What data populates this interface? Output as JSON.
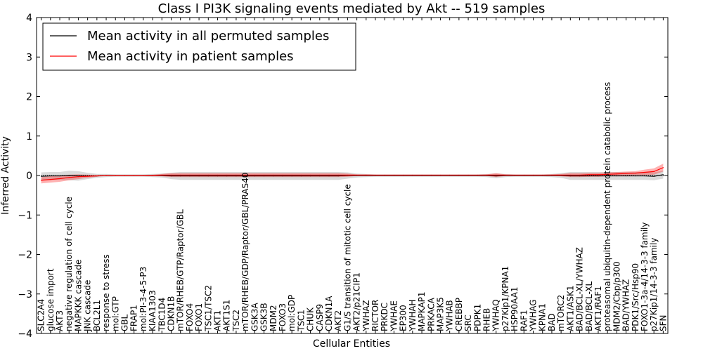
{
  "chart_data": {
    "type": "line",
    "title": "Class I PI3K signaling events mediated by Akt -- 519 samples",
    "xlabel": "Cellular Entities",
    "ylabel": "Inferred Activity",
    "ylim": [
      -4,
      4
    ],
    "yticks": [
      -4,
      -3,
      -2,
      -1,
      0,
      1,
      2,
      3,
      4
    ],
    "legend": {
      "position": "top-left",
      "entries": [
        {
          "label": "Mean activity in all permuted samples",
          "color": "#000000"
        },
        {
          "label": "Mean activity in patient samples",
          "color": "#ff0000"
        }
      ]
    },
    "categories": [
      "SLC2A4",
      "glucose import",
      "AKT3",
      "negative regulation of cell cycle",
      "MAPKKK cascade",
      "JNK cascade",
      "BCL2L1",
      "response to stress",
      "mol:GTP",
      "GBL",
      "FRAP1",
      "mol:PI-3-4-5-P3",
      "KIAA1303",
      "TBC1D4",
      "CDKN1B",
      "mTOR/RHEB/GTP/Raptor/GBL",
      "FOXO4",
      "FOXO1",
      "TSC1/TSC2",
      "AKT1",
      "AKT1S1",
      "TSC2",
      "mTOR/RHEB/GDP/Raptor/GBL/PRAS40",
      "GSK3A",
      "GSK3B",
      "MDM2",
      "FOXO3",
      "mol:GDP",
      "TSC1",
      "CHUK",
      "CASP9",
      "CDKN1A",
      "AKT2",
      "G1/S transition of mitotic cell cycle",
      "AKT2/p21CIP1",
      "YWHAZ",
      "RICTOR",
      "PRKDC",
      "YWHAE",
      "EP300",
      "YWHAH",
      "MAPKAP1",
      "PRKACA",
      "MAP3K5",
      "YWHAB",
      "CREBBP",
      "SRC",
      "PDPK1",
      "RHEB",
      "YWHAQ",
      "p27Kip1/KPNA1",
      "HSP90AA1",
      "RAF1",
      "YWHAG",
      "KPNA1",
      "BAD",
      "mTORC2",
      "AKT1/ASK1",
      "BAD/BCL-XL/YWHAZ",
      "BAD/BCL-XL",
      "AKT1/RAF1",
      "proteasomal ubiquitin-dependent protein catabolic process",
      "MDM2/Cbp/p300",
      "BAD/YWHAZ",
      "PDK1/Src/Hsp90",
      "FOXO1-3a-4/14-3-3 family",
      "p27Kip1/14-3-3 family",
      "SFN"
    ],
    "series": [
      {
        "name": "Mean activity in all permuted samples",
        "color": "#000000",
        "values": [
          -0.02,
          -0.01,
          -0.01,
          0.0,
          -0.01,
          -0.01,
          -0.01,
          0.0,
          0.0,
          0.0,
          0.0,
          0.0,
          0.0,
          0.0,
          -0.01,
          -0.01,
          -0.01,
          -0.01,
          -0.01,
          -0.01,
          -0.01,
          -0.01,
          -0.01,
          -0.01,
          -0.01,
          -0.01,
          -0.01,
          -0.01,
          -0.01,
          -0.01,
          -0.01,
          -0.01,
          -0.01,
          0.0,
          0.0,
          0.0,
          0.0,
          0.0,
          0.0,
          0.0,
          0.0,
          0.0,
          0.0,
          0.0,
          0.0,
          0.0,
          0.0,
          0.0,
          0.0,
          -0.01,
          0.0,
          0.0,
          0.0,
          0.0,
          0.0,
          0.0,
          0.0,
          -0.01,
          -0.01,
          -0.01,
          -0.01,
          -0.01,
          -0.01,
          -0.01,
          -0.01,
          -0.01,
          -0.02,
          0.02
        ],
        "band": [
          0.1,
          0.1,
          0.1,
          0.12,
          0.12,
          0.08,
          0.05,
          0.04,
          0.03,
          0.03,
          0.03,
          0.03,
          0.04,
          0.05,
          0.08,
          0.1,
          0.1,
          0.1,
          0.1,
          0.1,
          0.1,
          0.1,
          0.1,
          0.1,
          0.1,
          0.1,
          0.1,
          0.1,
          0.1,
          0.1,
          0.1,
          0.1,
          0.1,
          0.08,
          0.05,
          0.04,
          0.03,
          0.03,
          0.03,
          0.03,
          0.03,
          0.03,
          0.03,
          0.03,
          0.03,
          0.03,
          0.03,
          0.03,
          0.04,
          0.06,
          0.04,
          0.03,
          0.03,
          0.03,
          0.03,
          0.04,
          0.06,
          0.1,
          0.1,
          0.1,
          0.1,
          0.1,
          0.1,
          0.1,
          0.1,
          0.1,
          0.1,
          0.1
        ]
      },
      {
        "name": "Mean activity in patient samples",
        "color": "#ff0000",
        "values": [
          -0.12,
          -0.1,
          -0.08,
          -0.05,
          -0.03,
          -0.02,
          -0.01,
          0.0,
          0.0,
          0.0,
          0.0,
          0.0,
          0.0,
          0.01,
          0.01,
          0.01,
          0.01,
          0.01,
          0.01,
          0.01,
          0.01,
          0.01,
          0.01,
          0.01,
          0.01,
          0.01,
          0.01,
          0.01,
          0.01,
          0.01,
          0.01,
          0.01,
          0.01,
          0.01,
          0.01,
          0.01,
          0.01,
          0.01,
          0.01,
          0.01,
          0.01,
          0.01,
          0.01,
          0.01,
          0.01,
          0.01,
          0.01,
          0.01,
          0.01,
          0.01,
          0.01,
          0.01,
          0.01,
          0.01,
          0.01,
          0.01,
          0.01,
          0.01,
          0.01,
          0.02,
          0.02,
          0.03,
          0.04,
          0.05,
          0.06,
          0.08,
          0.1,
          0.2
        ],
        "band": [
          0.08,
          0.08,
          0.08,
          0.07,
          0.06,
          0.04,
          0.02,
          0.01,
          0.01,
          0.01,
          0.01,
          0.01,
          0.02,
          0.03,
          0.05,
          0.05,
          0.05,
          0.05,
          0.05,
          0.05,
          0.05,
          0.05,
          0.05,
          0.05,
          0.05,
          0.05,
          0.05,
          0.05,
          0.05,
          0.05,
          0.05,
          0.05,
          0.05,
          0.04,
          0.02,
          0.02,
          0.01,
          0.01,
          0.01,
          0.01,
          0.01,
          0.01,
          0.01,
          0.01,
          0.01,
          0.01,
          0.01,
          0.01,
          0.02,
          0.05,
          0.02,
          0.01,
          0.01,
          0.01,
          0.01,
          0.02,
          0.03,
          0.05,
          0.05,
          0.05,
          0.05,
          0.05,
          0.05,
          0.05,
          0.05,
          0.07,
          0.08,
          0.1
        ]
      }
    ]
  }
}
